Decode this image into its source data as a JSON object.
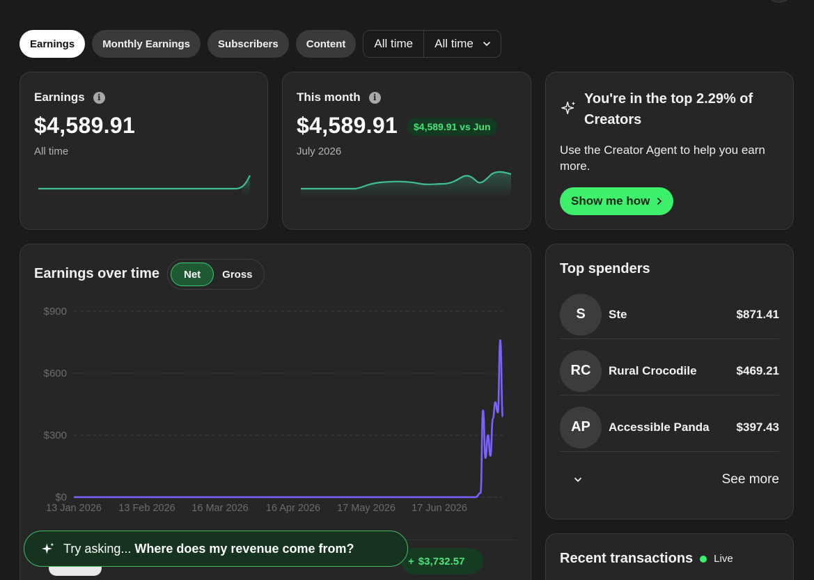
{
  "tabs": [
    {
      "label": "Earnings",
      "active": true
    },
    {
      "label": "Monthly Earnings",
      "active": false
    },
    {
      "label": "Subscribers",
      "active": false
    },
    {
      "label": "Content",
      "active": false
    }
  ],
  "range": {
    "first": "All time",
    "second": "All time"
  },
  "earnings_card": {
    "title": "Earnings",
    "value": "$4,589.91",
    "sub": "All time"
  },
  "month_card": {
    "title": "This month",
    "value": "$4,589.91",
    "vs": "$4,589.91 vs Jun",
    "sub": "July 2026"
  },
  "top_card": {
    "title": "You're in the top 2.29% of Creators",
    "desc": "Use the Creator Agent to help you earn more.",
    "button": "Show me how"
  },
  "chart_card": {
    "title": "Earnings over time",
    "toggle": {
      "net": "Net",
      "gross": "Gross"
    }
  },
  "chart_data": {
    "type": "line",
    "x_ticks": [
      "13 Jan 2026",
      "13 Feb 2026",
      "16 Mar 2026",
      "16 Apr 2026",
      "17 May 2026",
      "17 Jun 2026"
    ],
    "y_ticks": [
      "$0",
      "$300",
      "$600",
      "$900"
    ],
    "ylim": [
      0,
      900
    ],
    "x": [
      "2026-01-13",
      "2026-06-25",
      "2026-06-27",
      "2026-06-28",
      "2026-06-29",
      "2026-06-30",
      "2026-07-01",
      "2026-07-02",
      "2026-07-03",
      "2026-07-04",
      "2026-07-05",
      "2026-07-06"
    ],
    "values": [
      0,
      0,
      20,
      420,
      190,
      300,
      200,
      380,
      460,
      410,
      760,
      390
    ],
    "grid": true,
    "line_color": "#7b61ff"
  },
  "top_spenders": {
    "title": "Top spenders",
    "items": [
      {
        "initials": "S",
        "name": "Ste",
        "amount": "$871.41"
      },
      {
        "initials": "RC",
        "name": "Rural Crocodile",
        "amount": "$469.21"
      },
      {
        "initials": "AP",
        "name": "Accessible Panda",
        "amount": "$397.43"
      }
    ],
    "see_more": "See more"
  },
  "recent": {
    "title": "Recent transactions",
    "live": "Live"
  },
  "ask_bar": {
    "prefix": "Try asking...",
    "question": "Where does my revenue come from?"
  },
  "gain": {
    "sign": "+",
    "value": "$3,732.57"
  },
  "colors": {
    "accent": "#3df06c",
    "spark": "#3fbf94",
    "line": "#7b61ff",
    "card": "#262626",
    "background": "#1b1b1b"
  }
}
